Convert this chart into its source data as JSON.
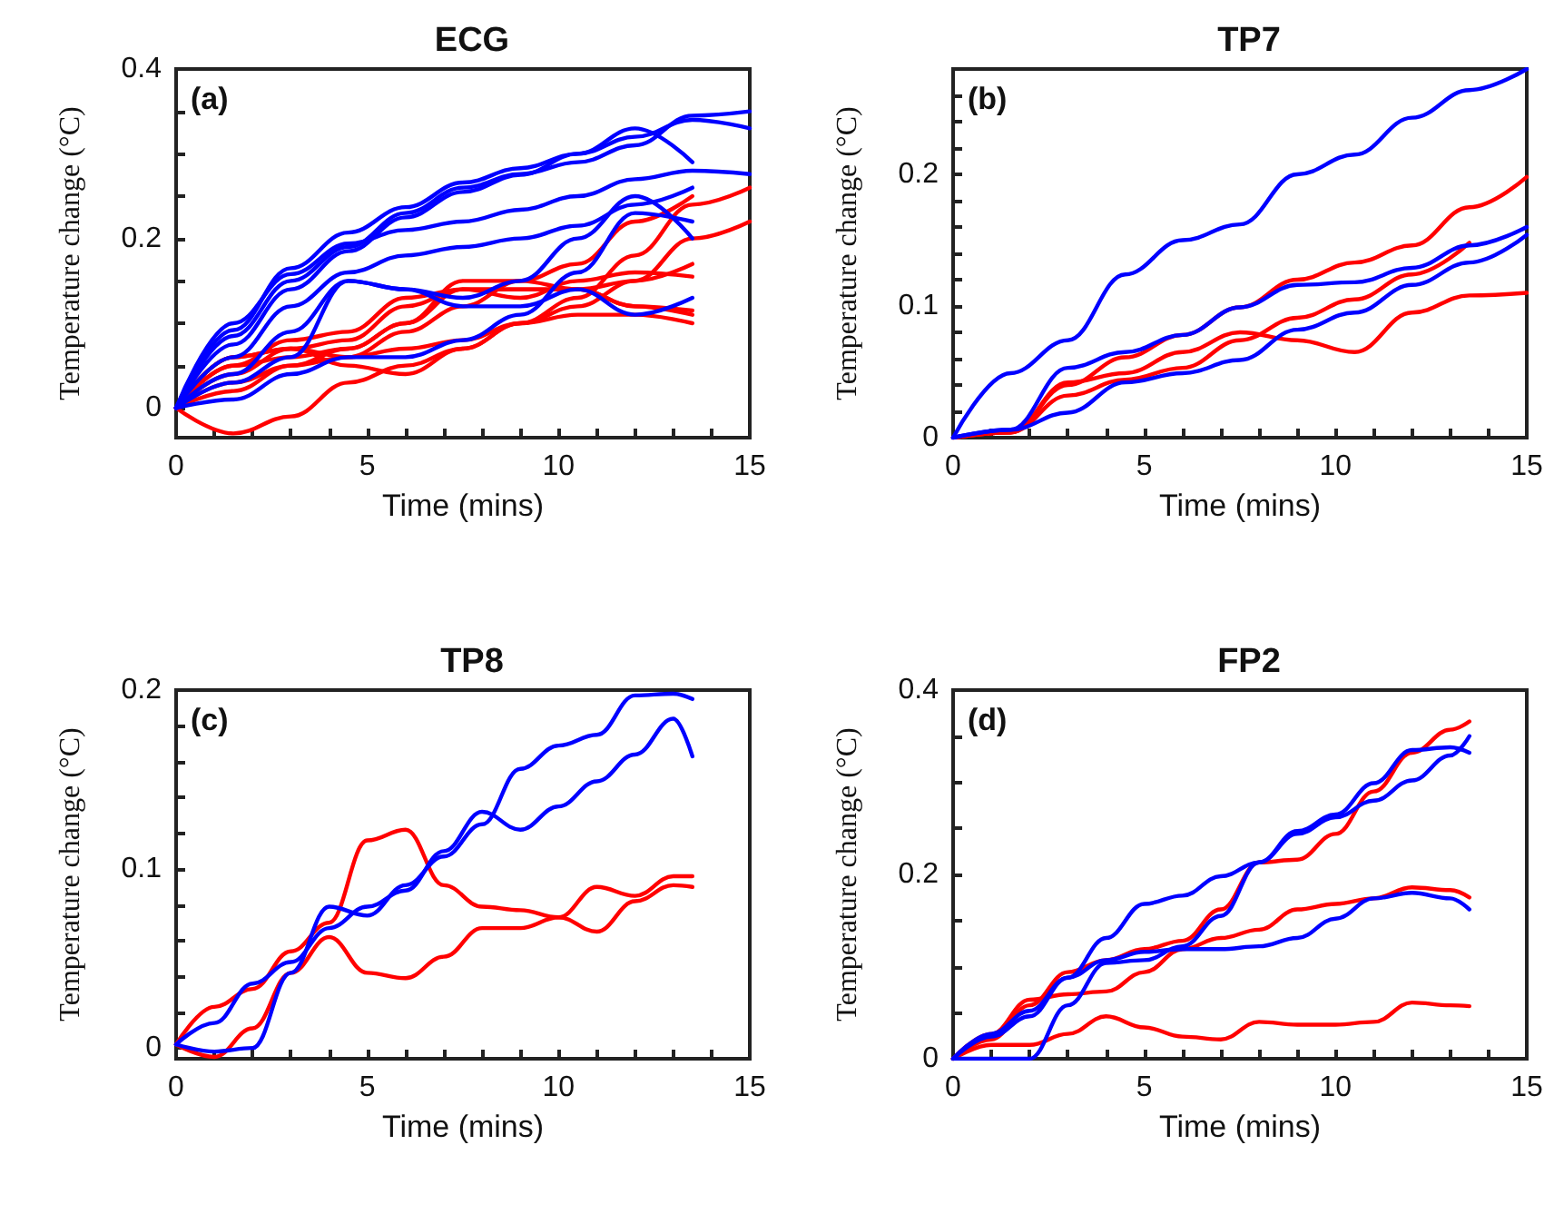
{
  "chart_data": [
    {
      "type": "line",
      "title": "ECG",
      "xlabel": "Time (mins)",
      "ylabel": "Temperature change (°C)",
      "annotations": [
        "(a)"
      ],
      "marker": "none",
      "line_style": "solid",
      "grid": false,
      "x": [
        0,
        1.5,
        3,
        4.5,
        6,
        7.5,
        9,
        10.5,
        12,
        13.5,
        15
      ],
      "xlim": [
        0,
        15
      ],
      "xticks": [
        0,
        {
          "value": 1,
          "label": null
        },
        {
          "value": 2,
          "label": null
        },
        {
          "value": 3,
          "label": null
        },
        {
          "value": 4,
          "label": null
        },
        5,
        {
          "value": 6,
          "label": null
        },
        {
          "value": 7,
          "label": null
        },
        {
          "value": 8,
          "label": null
        },
        {
          "value": 9,
          "label": null
        },
        10,
        {
          "value": 11,
          "label": null
        },
        {
          "value": 12,
          "label": null
        },
        {
          "value": 13,
          "label": null
        },
        {
          "value": 14,
          "label": null
        },
        15
      ],
      "ylim": [
        -0.035,
        0.4
      ],
      "yticks": [
        0,
        {
          "value": 0.05,
          "label": null
        },
        {
          "value": 0.1,
          "label": null
        },
        {
          "value": 0.15,
          "label": null
        },
        0.2,
        {
          "value": 0.25,
          "label": null
        },
        {
          "value": 0.3,
          "label": null
        },
        {
          "value": 0.35,
          "label": null
        },
        0.4
      ],
      "series": [
        {
          "color": "#ff0000",
          "values": [
            0,
            -0.03,
            -0.01,
            0.03,
            0.05,
            0.07,
            0.1,
            0.13,
            0.18,
            0.24,
            0.26
          ]
        },
        {
          "color": "#ff0000",
          "values": [
            0,
            0.02,
            0.05,
            0.06,
            0.07,
            0.08,
            0.1,
            0.12,
            0.15,
            0.2,
            0.22
          ]
        },
        {
          "color": "#ff0000",
          "values": [
            0,
            0.05,
            0.06,
            0.07,
            0.1,
            0.15,
            0.15,
            0.17,
            0.22,
            0.25,
            null
          ]
        },
        {
          "color": "#ff0000",
          "values": [
            0,
            0.06,
            0.07,
            0.08,
            0.12,
            0.14,
            0.14,
            0.14,
            0.15,
            0.17,
            null
          ]
        },
        {
          "color": "#ff0000",
          "values": [
            0,
            0.05,
            0.08,
            0.09,
            0.13,
            0.14,
            0.13,
            0.15,
            0.16,
            0.155,
            null
          ]
        },
        {
          "color": "#ff0000",
          "values": [
            0,
            0.04,
            0.07,
            0.06,
            0.09,
            0.12,
            0.15,
            0.14,
            0.12,
            0.115,
            null
          ]
        },
        {
          "color": "#ff0000",
          "values": [
            0,
            0.06,
            0.07,
            0.05,
            0.04,
            0.07,
            0.1,
            0.11,
            0.11,
            0.1,
            null
          ]
        },
        {
          "color": "#ff0000",
          "values": [
            0,
            0.03,
            0.05,
            0.07,
            0.1,
            0.14,
            0.14,
            0.14,
            0.12,
            0.11,
            null
          ]
        },
        {
          "color": "#0000ff",
          "values": [
            0,
            0.085,
            0.15,
            0.19,
            0.23,
            0.26,
            0.276,
            0.29,
            0.31,
            0.345,
            0.35
          ]
        },
        {
          "color": "#0000ff",
          "values": [
            0,
            0.092,
            0.165,
            0.207,
            0.237,
            0.266,
            0.283,
            0.3,
            0.32,
            0.34,
            0.33
          ]
        },
        {
          "color": "#0000ff",
          "values": [
            0,
            0.075,
            0.14,
            0.185,
            0.225,
            0.255,
            0.275,
            0.3,
            0.33,
            0.29,
            null
          ]
        },
        {
          "color": "#0000ff",
          "values": [
            0,
            0.1,
            0.158,
            0.194,
            0.21,
            0.22,
            0.234,
            0.25,
            0.27,
            0.28,
            0.276
          ]
        },
        {
          "color": "#0000ff",
          "values": [
            0,
            0.06,
            0.12,
            0.16,
            0.18,
            0.19,
            0.2,
            0.215,
            0.24,
            0.26,
            null
          ]
        },
        {
          "color": "#0000ff",
          "values": [
            0,
            0.04,
            0.09,
            0.15,
            0.14,
            0.13,
            0.15,
            0.2,
            0.25,
            0.2,
            null
          ]
        },
        {
          "color": "#0000ff",
          "values": [
            0,
            0.03,
            0.06,
            0.15,
            0.14,
            0.12,
            0.12,
            0.14,
            0.11,
            0.13,
            null
          ]
        },
        {
          "color": "#0000ff",
          "values": [
            0,
            0.01,
            0.04,
            0.06,
            0.06,
            0.08,
            0.11,
            0.16,
            0.23,
            0.22,
            null
          ]
        }
      ]
    },
    {
      "type": "line",
      "title": "TP7",
      "xlabel": "Time (mins)",
      "ylabel": "Temperature change (°C)",
      "annotations": [
        "(b)"
      ],
      "marker": "none",
      "line_style": "solid",
      "grid": false,
      "x": [
        0,
        1.5,
        3,
        4.5,
        6,
        7.5,
        9,
        10.5,
        12,
        13.5,
        15
      ],
      "xlim": [
        0,
        15
      ],
      "xticks": [
        0,
        {
          "value": 1,
          "label": null
        },
        {
          "value": 2,
          "label": null
        },
        {
          "value": 3,
          "label": null
        },
        {
          "value": 4,
          "label": null
        },
        5,
        {
          "value": 6,
          "label": null
        },
        {
          "value": 7,
          "label": null
        },
        {
          "value": 8,
          "label": null
        },
        {
          "value": 9,
          "label": null
        },
        10,
        {
          "value": 11,
          "label": null
        },
        {
          "value": 12,
          "label": null
        },
        {
          "value": 13,
          "label": null
        },
        {
          "value": 14,
          "label": null
        },
        15
      ],
      "ylim": [
        0,
        0.28
      ],
      "yticks": [
        0,
        {
          "value": 0.02,
          "label": null
        },
        {
          "value": 0.04,
          "label": null
        },
        {
          "value": 0.06,
          "label": null
        },
        {
          "value": 0.08,
          "label": null
        },
        0.1,
        {
          "value": 0.12,
          "label": null
        },
        {
          "value": 0.14,
          "label": null
        },
        {
          "value": 0.16,
          "label": null
        },
        {
          "value": 0.18,
          "label": null
        },
        0.2,
        {
          "value": 0.22,
          "label": null
        },
        {
          "value": 0.24,
          "label": null
        },
        {
          "value": 0.26,
          "label": null
        },
        {
          "value": 0.28,
          "label": null
        }
      ],
      "series": [
        {
          "color": "#ff0000",
          "values": [
            0,
            0.004,
            0.04,
            0.061,
            0.078,
            0.099,
            0.12,
            0.133,
            0.146,
            0.175,
            0.198
          ]
        },
        {
          "color": "#ff0000",
          "values": [
            0,
            0.004,
            0.032,
            0.044,
            0.053,
            0.074,
            0.091,
            0.105,
            0.124,
            0.148,
            null
          ]
        },
        {
          "color": "#ff0000",
          "values": [
            0,
            0.004,
            0.042,
            0.049,
            0.065,
            0.08,
            0.074,
            0.065,
            0.095,
            0.108,
            0.11
          ]
        },
        {
          "color": "#0000ff",
          "values": [
            0,
            0.049,
            0.074,
            0.124,
            0.15,
            0.162,
            0.2,
            0.215,
            0.243,
            0.264,
            0.28
          ]
        },
        {
          "color": "#0000ff",
          "values": [
            0,
            0.006,
            0.053,
            0.065,
            0.078,
            0.099,
            0.116,
            0.118,
            0.129,
            0.146,
            0.16
          ]
        },
        {
          "color": "#0000ff",
          "values": [
            0,
            0.006,
            0.019,
            0.042,
            0.049,
            0.059,
            0.082,
            0.095,
            0.116,
            0.133,
            0.154
          ]
        }
      ]
    },
    {
      "type": "line",
      "title": "TP8",
      "xlabel": "Time (mins)",
      "ylabel": "Temperature change (°C)",
      "annotations": [
        "(c)"
      ],
      "marker": "none",
      "line_style": "solid",
      "grid": false,
      "x": [
        0,
        1,
        2,
        3,
        4,
        5,
        6,
        7,
        8,
        9,
        10,
        11,
        12,
        13,
        13.5
      ],
      "xlim": [
        0,
        15
      ],
      "xticks": [
        0,
        {
          "value": 1,
          "label": null
        },
        {
          "value": 2,
          "label": null
        },
        {
          "value": 3,
          "label": null
        },
        {
          "value": 4,
          "label": null
        },
        5,
        {
          "value": 6,
          "label": null
        },
        {
          "value": 7,
          "label": null
        },
        {
          "value": 8,
          "label": null
        },
        {
          "value": 9,
          "label": null
        },
        10,
        {
          "value": 11,
          "label": null
        },
        {
          "value": 12,
          "label": null
        },
        {
          "value": 13,
          "label": null
        },
        {
          "value": 14,
          "label": null
        },
        15
      ],
      "ylim": [
        -0.006,
        0.2
      ],
      "yticks": [
        0,
        {
          "value": 0.02,
          "label": null
        },
        {
          "value": 0.04,
          "label": null
        },
        {
          "value": 0.06,
          "label": null
        },
        {
          "value": 0.08,
          "label": null
        },
        0.1,
        {
          "value": 0.12,
          "label": null
        },
        {
          "value": 0.14,
          "label": null
        },
        {
          "value": 0.16,
          "label": null
        },
        {
          "value": 0.18,
          "label": null
        },
        0.2
      ],
      "series": [
        {
          "color": "#ff0000",
          "values": [
            0.002,
            0.023,
            0.033,
            0.054,
            0.07,
            0.116,
            0.122,
            0.091,
            0.079,
            0.077,
            0.073,
            0.09,
            0.085,
            0.096,
            0.096
          ]
        },
        {
          "color": "#ff0000",
          "values": [
            0.002,
            -0.005,
            0.011,
            0.042,
            0.062,
            0.042,
            0.039,
            0.051,
            0.067,
            0.067,
            0.073,
            0.065,
            0.082,
            0.091,
            0.09
          ]
        },
        {
          "color": "#0000ff",
          "values": [
            0.002,
            -0.002,
            0,
            0.042,
            0.079,
            0.074,
            0.091,
            0.107,
            0.125,
            0.156,
            0.169,
            0.175,
            0.197,
            0.198,
            0.195
          ]
        },
        {
          "color": "#0000ff",
          "values": [
            0.002,
            0.014,
            0.036,
            0.048,
            0.067,
            0.079,
            0.088,
            0.11,
            0.132,
            0.122,
            0.135,
            0.149,
            0.164,
            0.184,
            0.163
          ]
        }
      ]
    },
    {
      "type": "line",
      "title": "FP2",
      "xlabel": "Time (mins)",
      "ylabel": "Temperature change (°C)",
      "annotations": [
        "(d)"
      ],
      "marker": "none",
      "line_style": "solid",
      "grid": false,
      "x": [
        0,
        1,
        2,
        3,
        4,
        5,
        6,
        7,
        8,
        9,
        10,
        11,
        12,
        13,
        13.5
      ],
      "xlim": [
        0,
        15
      ],
      "xticks": [
        0,
        {
          "value": 1,
          "label": null
        },
        {
          "value": 2,
          "label": null
        },
        {
          "value": 3,
          "label": null
        },
        {
          "value": 4,
          "label": null
        },
        5,
        {
          "value": 6,
          "label": null
        },
        {
          "value": 7,
          "label": null
        },
        {
          "value": 8,
          "label": null
        },
        {
          "value": 9,
          "label": null
        },
        10,
        {
          "value": 11,
          "label": null
        },
        {
          "value": 12,
          "label": null
        },
        {
          "value": 13,
          "label": null
        },
        {
          "value": 14,
          "label": null
        },
        15
      ],
      "ylim": [
        0,
        0.4
      ],
      "yticks": [
        0,
        {
          "value": 0.05,
          "label": null
        },
        {
          "value": 0.1,
          "label": null
        },
        {
          "value": 0.15,
          "label": null
        },
        0.2,
        {
          "value": 0.25,
          "label": null
        },
        {
          "value": 0.3,
          "label": null
        },
        {
          "value": 0.35,
          "label": null
        },
        0.4
      ],
      "series": [
        {
          "color": "#ff0000",
          "values": [
            0,
            0.021,
            0.058,
            0.094,
            0.107,
            0.119,
            0.128,
            0.162,
            0.213,
            0.216,
            0.244,
            0.29,
            0.332,
            0.357,
            0.366
          ]
        },
        {
          "color": "#ff0000",
          "values": [
            0,
            0.027,
            0.064,
            0.07,
            0.073,
            0.094,
            0.119,
            0.131,
            0.14,
            0.162,
            0.168,
            0.174,
            0.186,
            0.183,
            0.175
          ]
        },
        {
          "color": "#ff0000",
          "values": [
            0,
            0.015,
            0.015,
            0.027,
            0.046,
            0.034,
            0.024,
            0.021,
            0.04,
            0.037,
            0.037,
            0.04,
            0.061,
            0.058,
            0.057
          ]
        },
        {
          "color": "#0000ff",
          "values": [
            0,
            0.027,
            0.052,
            0.088,
            0.131,
            0.168,
            0.177,
            0.198,
            0.213,
            0.247,
            0.265,
            0.299,
            0.335,
            0.338,
            0.332
          ]
        },
        {
          "color": "#0000ff",
          "values": [
            0,
            0,
            0,
            0.058,
            0.104,
            0.107,
            0.122,
            0.155,
            0.213,
            0.244,
            0.262,
            0.28,
            0.302,
            0.329,
            0.35
          ]
        },
        {
          "color": "#0000ff",
          "values": [
            0,
            0.024,
            0.046,
            0.088,
            0.107,
            0.116,
            0.119,
            0.119,
            0.122,
            0.131,
            0.152,
            0.174,
            0.18,
            0.174,
            0.162
          ]
        }
      ]
    }
  ]
}
